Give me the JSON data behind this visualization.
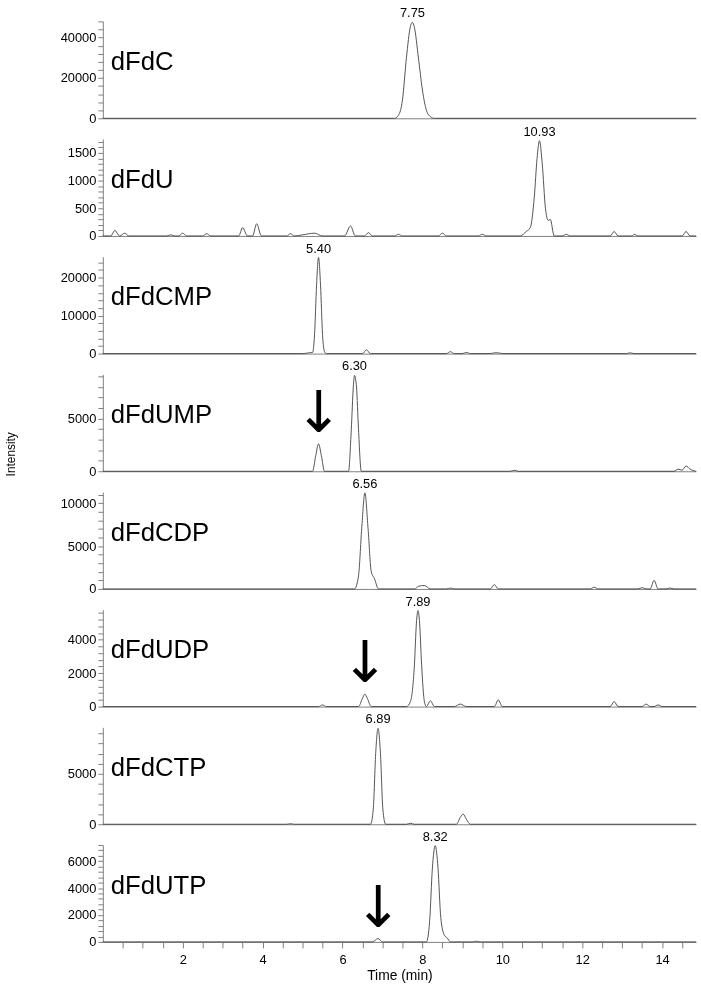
{
  "chart_data": [
    {
      "type": "line",
      "title": "dFdC",
      "xlim": [
        0,
        14.85
      ],
      "ylim": [
        0,
        48000
      ],
      "tick_labels": "y",
      "yticks": [
        0,
        {
          "value": 4000,
          "label": null
        },
        {
          "value": 8000,
          "label": null
        },
        {
          "value": 12000,
          "label": null
        },
        {
          "value": 16000,
          "label": null
        },
        20000,
        {
          "value": 24000,
          "label": null
        },
        {
          "value": 28000,
          "label": null
        },
        {
          "value": 32000,
          "label": null
        },
        {
          "value": 36000,
          "label": null
        },
        40000,
        {
          "value": 44000,
          "label": null
        },
        {
          "value": 48000,
          "label": null
        }
      ],
      "annotations": [
        {
          "text": "7.75",
          "x": 7.75,
          "y": 47500
        }
      ],
      "series": [
        {
          "color": "#404040",
          "x": [
            0,
            7.3,
            7.4,
            7.5,
            7.6,
            7.7,
            7.75,
            7.8,
            7.9,
            8.0,
            8.1,
            8.2,
            8.3,
            14.85
          ],
          "values": [
            0,
            0,
            1500,
            9000,
            30000,
            45500,
            47500,
            45000,
            30000,
            14000,
            4000,
            800,
            0,
            0
          ]
        }
      ]
    },
    {
      "type": "line",
      "title": "dFdU",
      "xlim": [
        0,
        14.85
      ],
      "ylim": [
        0,
        1750
      ],
      "tick_labels": "y",
      "yticks": [
        0,
        {
          "value": 100,
          "label": null
        },
        {
          "value": 200,
          "label": null
        },
        {
          "value": 300,
          "label": null
        },
        {
          "value": 400,
          "label": null
        },
        500,
        {
          "value": 600,
          "label": null
        },
        {
          "value": 700,
          "label": null
        },
        {
          "value": 800,
          "label": null
        },
        {
          "value": 900,
          "label": null
        },
        1000,
        {
          "value": 1100,
          "label": null
        },
        {
          "value": 1200,
          "label": null
        },
        {
          "value": 1300,
          "label": null
        },
        {
          "value": 1400,
          "label": null
        },
        1500,
        {
          "value": 1600,
          "label": null
        },
        {
          "value": 1700,
          "label": null
        }
      ],
      "annotations": [
        {
          "text": "10.93",
          "x": 10.93,
          "y": 1720
        }
      ],
      "series": [
        {
          "color": "#404040",
          "x": [
            0,
            0.2,
            0.3,
            0.42,
            0.55,
            0.65,
            1.6,
            1.7,
            1.8,
            1.9,
            2.0,
            2.1,
            2.5,
            2.6,
            2.7,
            3.4,
            3.5,
            3.62,
            3.75,
            3.85,
            3.97,
            4.6,
            4.7,
            4.8,
            5.0,
            5.3,
            5.5,
            6.05,
            6.2,
            6.32,
            6.55,
            6.65,
            6.75,
            7.3,
            7.4,
            7.5,
            8.4,
            8.5,
            8.6,
            9.4,
            9.5,
            9.6,
            10.45,
            10.6,
            10.7,
            10.8,
            10.87,
            10.93,
            11.0,
            11.08,
            11.15,
            11.2,
            11.3,
            11.5,
            11.6,
            11.7,
            12.7,
            12.8,
            12.9,
            13.25,
            13.3,
            13.4,
            14.5,
            14.6,
            14.7,
            14.85
          ],
          "values": [
            0,
            0,
            100,
            0,
            50,
            0,
            0,
            20,
            0,
            0,
            50,
            0,
            0,
            40,
            0,
            0,
            150,
            0,
            0,
            220,
            0,
            0,
            40,
            0,
            20,
            50,
            0,
            0,
            180,
            0,
            0,
            60,
            0,
            0,
            30,
            0,
            0,
            50,
            0,
            0,
            30,
            0,
            0,
            80,
            150,
            700,
            1400,
            1720,
            1300,
            500,
            280,
            300,
            0,
            0,
            30,
            0,
            0,
            80,
            0,
            0,
            30,
            0,
            0,
            80,
            0,
            0
          ]
        }
      ]
    },
    {
      "type": "line",
      "title": "dFdCMP",
      "xlim": [
        0,
        14.85
      ],
      "ylim": [
        0,
        25500
      ],
      "tick_labels": "y",
      "yticks": [
        0,
        {
          "value": 2000,
          "label": null
        },
        {
          "value": 4000,
          "label": null
        },
        {
          "value": 6000,
          "label": null
        },
        {
          "value": 8000,
          "label": null
        },
        10000,
        {
          "value": 12000,
          "label": null
        },
        {
          "value": 14000,
          "label": null
        },
        {
          "value": 16000,
          "label": null
        },
        {
          "value": 18000,
          "label": null
        },
        20000,
        {
          "value": 22000,
          "label": null
        },
        {
          "value": 24000,
          "label": null
        }
      ],
      "annotations": [
        {
          "text": "5.40",
          "x": 5.4,
          "y": 25300
        }
      ],
      "series": [
        {
          "color": "#404040",
          "x": [
            0,
            5.0,
            5.15,
            5.25,
            5.3,
            5.35,
            5.4,
            5.45,
            5.5,
            5.55,
            5.6,
            6.5,
            6.6,
            6.7,
            8.6,
            8.7,
            8.8,
            9.0,
            9.1,
            9.2,
            9.7,
            9.8,
            9.9,
            10.0,
            13.1,
            13.2,
            13.3,
            14.85
          ],
          "values": [
            0,
            0,
            200,
            300,
            5000,
            18000,
            25300,
            18000,
            5000,
            500,
            0,
            0,
            1000,
            0,
            0,
            500,
            0,
            0,
            300,
            0,
            0,
            200,
            200,
            0,
            0,
            200,
            0,
            0
          ]
        }
      ]
    },
    {
      "type": "line",
      "title": "dFdUMP",
      "ylabel": "Intensity",
      "xlim": [
        0,
        14.85
      ],
      "ylim": [
        0,
        9200
      ],
      "tick_labels": "y",
      "yticks": [
        0,
        {
          "value": 1000,
          "label": null
        },
        {
          "value": 2000,
          "label": null
        },
        {
          "value": 3000,
          "label": null
        },
        {
          "value": 4000,
          "label": null
        },
        5000,
        {
          "value": 6000,
          "label": null
        },
        {
          "value": 7000,
          "label": null
        },
        {
          "value": 8000,
          "label": null
        },
        {
          "value": 9000,
          "label": null
        }
      ],
      "annotations": [
        {
          "text": "6.30",
          "x": 6.3,
          "y": 9100
        },
        {
          "text": "↓",
          "x": 5.4,
          "y": 2600
        }
      ],
      "series": [
        {
          "color": "#404040",
          "x": [
            0,
            5.25,
            5.33,
            5.4,
            5.47,
            5.55,
            6.15,
            6.22,
            6.27,
            6.3,
            6.35,
            6.4,
            6.47,
            10.2,
            10.3,
            10.4,
            14.3,
            14.4,
            14.5,
            14.6,
            14.7,
            14.85
          ],
          "values": [
            0,
            0,
            1500,
            2600,
            1500,
            0,
            0,
            4000,
            8000,
            9100,
            8000,
            4000,
            0,
            0,
            100,
            0,
            0,
            200,
            100,
            500,
            200,
            0
          ]
        }
      ]
    },
    {
      "type": "line",
      "title": "dFdCDP",
      "xlim": [
        0,
        14.85
      ],
      "ylim": [
        0,
        11300
      ],
      "tick_labels": "y",
      "yticks": [
        0,
        {
          "value": 1000,
          "label": null
        },
        {
          "value": 2000,
          "label": null
        },
        {
          "value": 3000,
          "label": null
        },
        {
          "value": 4000,
          "label": null
        },
        5000,
        {
          "value": 6000,
          "label": null
        },
        {
          "value": 7000,
          "label": null
        },
        {
          "value": 8000,
          "label": null
        },
        {
          "value": 9000,
          "label": null
        },
        10000,
        {
          "value": 11000,
          "label": null
        }
      ],
      "annotations": [
        {
          "text": "6.56",
          "x": 6.56,
          "y": 11200
        }
      ],
      "series": [
        {
          "color": "#404040",
          "x": [
            0,
            6.3,
            6.4,
            6.48,
            6.56,
            6.64,
            6.72,
            6.8,
            6.9,
            7.8,
            7.9,
            8.05,
            8.2,
            8.6,
            8.7,
            8.8,
            9.7,
            9.8,
            9.9,
            12.2,
            12.3,
            12.4,
            13.4,
            13.5,
            13.6,
            13.7,
            13.8,
            13.9,
            14.1,
            14.2,
            14.3,
            14.85
          ],
          "values": [
            0,
            0,
            1500,
            7000,
            11200,
            7000,
            2000,
            1200,
            0,
            0,
            300,
            400,
            0,
            0,
            100,
            0,
            0,
            500,
            0,
            0,
            200,
            0,
            0,
            150,
            0,
            0,
            1000,
            0,
            0,
            100,
            0,
            0
          ]
        }
      ]
    },
    {
      "type": "line",
      "title": "dFdUDP",
      "xlim": [
        0,
        14.85
      ],
      "ylim": [
        0,
        5800
      ],
      "tick_labels": "y",
      "yticks": [
        0,
        {
          "value": 400,
          "label": null
        },
        {
          "value": 800,
          "label": null
        },
        {
          "value": 1200,
          "label": null
        },
        {
          "value": 1600,
          "label": null
        },
        2000,
        {
          "value": 2400,
          "label": null
        },
        {
          "value": 2800,
          "label": null
        },
        {
          "value": 3200,
          "label": null
        },
        {
          "value": 3600,
          "label": null
        },
        4000,
        {
          "value": 4400,
          "label": null
        },
        {
          "value": 4800,
          "label": null
        },
        {
          "value": 5200,
          "label": null
        },
        {
          "value": 5600,
          "label": null
        }
      ],
      "annotations": [
        {
          "text": "7.89",
          "x": 7.89,
          "y": 5750
        },
        {
          "text": "↓",
          "x": 6.56,
          "y": 750
        }
      ],
      "series": [
        {
          "color": "#404040",
          "x": [
            0,
            5.4,
            5.5,
            5.6,
            6.4,
            6.5,
            6.56,
            6.62,
            6.72,
            7.6,
            7.7,
            7.8,
            7.85,
            7.89,
            7.93,
            7.98,
            8.05,
            8.1,
            8.2,
            8.3,
            8.8,
            8.95,
            9.1,
            9.8,
            9.9,
            10.0,
            12.7,
            12.8,
            12.9,
            13.5,
            13.6,
            13.7,
            13.8,
            13.9,
            14.0,
            14.85
          ],
          "values": [
            0,
            0,
            100,
            0,
            0,
            500,
            750,
            500,
            0,
            0,
            300,
            2500,
            5000,
            5750,
            5000,
            2500,
            300,
            0,
            350,
            0,
            0,
            150,
            0,
            0,
            400,
            0,
            0,
            300,
            0,
            0,
            150,
            0,
            0,
            100,
            0,
            0
          ]
        }
      ]
    },
    {
      "type": "line",
      "title": "dFdCTP",
      "xlim": [
        0,
        14.85
      ],
      "ylim": [
        0,
        9600
      ],
      "tick_labels": "y",
      "yticks": [
        0,
        {
          "value": 1000,
          "label": null
        },
        {
          "value": 2000,
          "label": null
        },
        {
          "value": 3000,
          "label": null
        },
        {
          "value": 4000,
          "label": null
        },
        5000,
        {
          "value": 6000,
          "label": null
        },
        {
          "value": 7000,
          "label": null
        },
        {
          "value": 8000,
          "label": null
        },
        {
          "value": 9000,
          "label": null
        }
      ],
      "annotations": [
        {
          "text": "6.89",
          "x": 6.89,
          "y": 9500
        }
      ],
      "series": [
        {
          "color": "#404040",
          "x": [
            0,
            4.6,
            4.7,
            4.8,
            6.7,
            6.77,
            6.83,
            6.89,
            6.95,
            7.01,
            7.08,
            7.6,
            7.7,
            7.8,
            8.85,
            8.95,
            9.02,
            9.1,
            9.2,
            14.85
          ],
          "values": [
            0,
            0,
            50,
            0,
            0,
            1500,
            7000,
            9500,
            7000,
            1500,
            0,
            0,
            100,
            0,
            0,
            700,
            1000,
            500,
            0,
            0
          ]
        }
      ]
    },
    {
      "type": "line",
      "title": "dFdUTP",
      "xlabel": "Time (min)",
      "xlim": [
        0,
        14.85
      ],
      "ylim": [
        0,
        7200
      ],
      "xticks": [
        {
          "value": 0.5,
          "label": null
        },
        {
          "value": 1,
          "label": null
        },
        {
          "value": 1.5,
          "label": null
        },
        2,
        {
          "value": 2.5,
          "label": null
        },
        {
          "value": 3,
          "label": null
        },
        {
          "value": 3.5,
          "label": null
        },
        4,
        {
          "value": 4.5,
          "label": null
        },
        {
          "value": 5,
          "label": null
        },
        {
          "value": 5.5,
          "label": null
        },
        6,
        {
          "value": 6.5,
          "label": null
        },
        {
          "value": 7,
          "label": null
        },
        {
          "value": 7.5,
          "label": null
        },
        8,
        {
          "value": 8.5,
          "label": null
        },
        {
          "value": 9,
          "label": null
        },
        {
          "value": 9.5,
          "label": null
        },
        10,
        {
          "value": 10.5,
          "label": null
        },
        {
          "value": 11,
          "label": null
        },
        {
          "value": 11.5,
          "label": null
        },
        12,
        {
          "value": 12.5,
          "label": null
        },
        {
          "value": 13,
          "label": null
        },
        {
          "value": 13.5,
          "label": null
        },
        14,
        {
          "value": 14.5,
          "label": null
        }
      ],
      "yticks": [
        0,
        {
          "value": 400,
          "label": null
        },
        {
          "value": 800,
          "label": null
        },
        {
          "value": 1200,
          "label": null
        },
        {
          "value": 1600,
          "label": null
        },
        2000,
        {
          "value": 2400,
          "label": null
        },
        {
          "value": 2800,
          "label": null
        },
        {
          "value": 3200,
          "label": null
        },
        {
          "value": 3600,
          "label": null
        },
        4000,
        {
          "value": 4400,
          "label": null
        },
        {
          "value": 4800,
          "label": null
        },
        {
          "value": 5200,
          "label": null
        },
        {
          "value": 5600,
          "label": null
        },
        6000,
        {
          "value": 6400,
          "label": null
        },
        {
          "value": 6800,
          "label": null
        },
        {
          "value": 7200,
          "label": null
        }
      ],
      "annotations": [
        {
          "text": "8.32",
          "x": 8.32,
          "y": 7150
        },
        {
          "text": "↓",
          "x": 6.89,
          "y": 250
        }
      ],
      "series": [
        {
          "color": "#404040",
          "x": [
            0,
            6.75,
            6.89,
            7.0,
            8.1,
            8.18,
            8.25,
            8.32,
            8.39,
            8.46,
            8.55,
            8.62,
            8.7,
            9.25,
            9.35,
            9.45,
            14.85
          ],
          "values": [
            0,
            0,
            250,
            0,
            0,
            1500,
            5500,
            7150,
            5500,
            1800,
            500,
            300,
            0,
            0,
            50,
            0,
            0
          ]
        }
      ]
    }
  ]
}
